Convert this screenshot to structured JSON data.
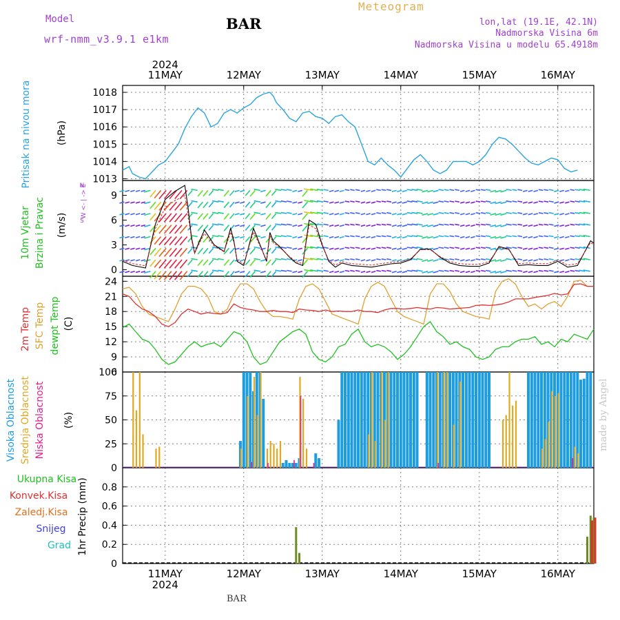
{
  "header": {
    "model_label": "Model",
    "model_name": "wrf-nmm_v3.9.1 e1km",
    "station": "BAR",
    "title": "Meteogram",
    "lonlat": "lon,lat (19.1E, 42.1N)",
    "altitude": "Nadmorska Visina 6m",
    "model_altitude": "Nadmorska Visina u modelu 65.4918m",
    "footer_station": "BAR",
    "watermark": "made by Angel"
  },
  "colors": {
    "pressure": "#29a3e0",
    "wind_label": "#20c020",
    "temp2m": "#e03030",
    "sfc_temp": "#e0a030",
    "dewpt": "#20c020",
    "high_cloud": "#1e9ce0",
    "mid_cloud": "#e0a820",
    "low_cloud": "#e0208c",
    "rain_total": "#20c020",
    "rain_conv": "#e03030",
    "rain_frz": "#e07020",
    "snow": "#4040e0",
    "graupel": "#20c0c0",
    "grid": "#808080"
  },
  "time_axis": {
    "year": "2024",
    "day_labels": [
      "11MAY",
      "12MAY",
      "13MAY",
      "14MAY",
      "15MAY",
      "16MAY"
    ],
    "start_hour": -13,
    "end_hour": 131
  },
  "panels": {
    "pressure": {
      "label": "Pritisak na nivou mora",
      "unit": "(hPa)",
      "ylim": [
        1012.9,
        1018.4
      ],
      "ticks": [
        "1013",
        "1014",
        "1015",
        "1016",
        "1017",
        "1018"
      ]
    },
    "wind": {
      "label1": "10m Vjetar",
      "label2": "Brzina i Pravac",
      "unit": "(m/s)",
      "compass": "W <- | -> E",
      "compass_n": "N",
      "compass_s": "S",
      "ylim": [
        -0.8,
        10.8
      ],
      "ticks": [
        "0",
        "3",
        "6",
        "9"
      ]
    },
    "temperature": {
      "label1": "2m Temp",
      "label2": "SFC Temp",
      "label3": "dewpt Temp",
      "unit": "(C)",
      "ylim": [
        6,
        25
      ],
      "ticks": [
        "6",
        "9",
        "12",
        "15",
        "18",
        "21",
        "24"
      ]
    },
    "cloud": {
      "label1": "Visoka Oblacnost",
      "label2": "Srednja Oblacnost",
      "label3": "Niska Oblacnost",
      "unit": "(%)",
      "ylim": [
        0,
        100
      ],
      "ticks": [
        "0",
        "25",
        "50",
        "75",
        "100"
      ]
    },
    "precip": {
      "legend": [
        "Ukupna Kisa",
        "Konvek.Kisa",
        "Zaledj.Kisa",
        "Snijeg",
        "Grad"
      ],
      "unit": "1hr Precip (mm)",
      "ylim": [
        0,
        1.0
      ],
      "ticks": [
        "0",
        "0.2",
        "0.4",
        "0.6",
        "0.8"
      ]
    }
  },
  "chart_data": [
    {
      "type": "line",
      "title": "Pritisak na nivou mora",
      "ylabel": "(hPa)",
      "x_hours": [
        -13,
        -11,
        -10,
        -8,
        -6,
        -4,
        -2,
        0,
        2,
        4,
        6,
        8,
        10,
        12,
        14,
        16,
        18,
        20,
        22,
        24,
        26,
        28,
        30,
        32,
        33,
        34,
        36,
        38,
        40,
        42,
        44,
        46,
        48,
        50,
        52,
        54,
        56,
        58,
        60,
        62,
        64,
        66,
        68,
        70,
        72,
        74,
        76,
        78,
        80,
        82,
        84,
        86,
        88,
        90,
        92,
        94,
        96,
        98,
        100,
        102,
        104,
        106,
        108,
        110,
        112,
        114,
        116,
        118,
        120,
        122,
        124,
        126,
        128,
        130,
        131
      ],
      "series": [
        {
          "values": [
            1013.5,
            1013.7,
            1013.3,
            1013.1,
            1013.0,
            1013.4,
            1013.8,
            1014.0,
            1014.5,
            1015.0,
            1015.9,
            1016.6,
            1017.1,
            1016.8,
            1016.0,
            1016.2,
            1016.8,
            1017.0,
            1016.8,
            1017.1,
            1017.3,
            1017.7,
            1017.9,
            1018.0,
            1017.8,
            1017.4,
            1017.0,
            1016.5,
            1016.3,
            1016.8,
            1016.9,
            1016.6,
            1016.5,
            1016.2,
            1016.6,
            1016.7,
            1016.3,
            1016.0,
            1015.0,
            1014.0,
            1013.8,
            1014.2,
            1013.8,
            1013.5,
            1013.1,
            1013.6,
            1014.1,
            1014.4,
            1014.0,
            1013.5,
            1013.3,
            1013.5,
            1014.0,
            1014.0,
            1014.0,
            1013.8,
            1014.0,
            1014.4,
            1015.0,
            1015.4,
            1015.3,
            1015.0,
            1014.6,
            1014.2,
            1013.9,
            1013.8,
            1014.0,
            1014.2,
            1014.1,
            1013.6,
            1013.4,
            1013.5
          ]
        }
      ],
      "ylim": [
        1012.9,
        1018.4
      ]
    },
    {
      "type": "line",
      "title": "10m Vjetar Brzina i Pravac",
      "ylabel": "(m/s)",
      "x_hours": [
        -13,
        -10,
        -6,
        -3,
        0,
        3,
        6,
        7,
        8,
        9,
        10,
        12,
        15,
        18,
        20,
        21,
        22,
        24,
        27,
        30,
        31,
        32,
        33,
        35,
        38,
        40,
        42,
        44,
        46,
        48,
        50,
        52,
        54,
        57,
        60,
        63,
        66,
        69,
        72,
        75,
        78,
        81,
        84,
        87,
        90,
        93,
        96,
        99,
        102,
        105,
        108,
        111,
        114,
        117,
        120,
        123,
        126,
        128,
        130,
        131
      ],
      "series": [
        {
          "values": [
            1.0,
            0.5,
            0.2,
            5.5,
            8.5,
            9.5,
            10.2,
            7.5,
            4.0,
            2.0,
            3.0,
            4.8,
            3.0,
            2.2,
            5.0,
            3.5,
            1.0,
            0.5,
            5.0,
            2.0,
            1.0,
            4.5,
            3.5,
            2.8,
            1.5,
            0.8,
            0.5,
            6.0,
            5.5,
            3.0,
            1.0,
            0.3,
            0.8,
            0.5,
            0.4,
            0.3,
            0.5,
            0.7,
            0.8,
            1.2,
            2.5,
            2.5,
            1.5,
            0.8,
            0.5,
            0.4,
            0.4,
            0.8,
            2.8,
            2.5,
            0.5,
            0.6,
            0.5,
            0.5,
            1.0,
            0.3,
            0.5,
            2.0,
            3.5,
            3.2
          ]
        }
      ],
      "ylim": [
        -0.8,
        10.8
      ]
    },
    {
      "type": "line",
      "title": "2m Temp / SFC Temp / dewpt Temp",
      "ylabel": "(C)",
      "x_hours": [
        -13,
        -11,
        -9,
        -7,
        -5,
        -3,
        -1,
        1,
        3,
        5,
        7,
        9,
        11,
        13,
        15,
        17,
        19,
        21,
        23,
        25,
        27,
        29,
        31,
        33,
        35,
        37,
        39,
        41,
        43,
        45,
        47,
        49,
        51,
        53,
        55,
        57,
        59,
        61,
        63,
        65,
        67,
        69,
        71,
        73,
        75,
        77,
        79,
        81,
        83,
        85,
        87,
        89,
        91,
        93,
        95,
        97,
        99,
        101,
        103,
        105,
        107,
        109,
        111,
        113,
        115,
        117,
        119,
        121,
        123,
        125,
        127,
        129,
        131
      ],
      "series": [
        {
          "name": "2m Temp",
          "values": [
            21.5,
            21.0,
            19.5,
            18.5,
            18.0,
            17.0,
            15.5,
            15.0,
            15.8,
            17.5,
            18.5,
            18.0,
            17.5,
            17.8,
            17.6,
            17.5,
            17.8,
            19.5,
            18.8,
            18.5,
            18.3,
            18.0,
            18.0,
            18.2,
            18.0,
            18.0,
            17.8,
            18.5,
            18.3,
            18.2,
            18.0,
            18.3,
            18.0,
            18.1,
            18.0,
            18.0,
            18.3,
            18.0,
            18.0,
            17.8,
            18.3,
            18.6,
            18.6,
            18.5,
            18.6,
            18.8,
            18.6,
            18.5,
            18.8,
            18.7,
            18.5,
            18.6,
            18.7,
            18.8,
            19.2,
            19.3,
            19.2,
            19.3,
            19.5,
            19.9,
            20.5,
            20.5,
            20.5,
            20.8,
            21.0,
            21.2,
            21.6,
            21.3,
            21.5,
            23.4,
            23.5,
            23.0,
            23.0
          ]
        },
        {
          "name": "SFC Temp",
          "values": [
            22.5,
            22.8,
            21.5,
            19.0,
            17.5,
            17.0,
            16.5,
            16.0,
            18.5,
            21.5,
            23.0,
            23.0,
            22.5,
            21.0,
            18.0,
            17.5,
            18.5,
            21.5,
            23.5,
            23.5,
            22.5,
            20.0,
            18.0,
            17.0,
            17.0,
            16.8,
            16.5,
            20.5,
            23.0,
            23.5,
            22.5,
            20.0,
            17.5,
            17.0,
            16.5,
            16.0,
            15.5,
            20.5,
            23.0,
            23.8,
            23.0,
            20.5,
            18.0,
            17.0,
            16.5,
            16.0,
            15.5,
            21.5,
            23.5,
            23.5,
            22.0,
            19.5,
            18.0,
            17.5,
            17.0,
            16.8,
            16.5,
            22.0,
            24.0,
            24.5,
            23.5,
            21.0,
            19.0,
            19.5,
            18.5,
            19.5,
            20.0,
            19.0,
            21.0,
            24.0,
            24.2,
            23.0,
            23.0
          ]
        },
        {
          "name": "dewpt Temp",
          "values": [
            14.8,
            15.5,
            14.0,
            12.5,
            12.0,
            10.5,
            8.5,
            7.5,
            8.0,
            9.5,
            11.0,
            12.0,
            11.0,
            11.5,
            11.8,
            11.0,
            12.5,
            14.0,
            13.5,
            12.0,
            9.0,
            7.5,
            8.0,
            10.0,
            12.0,
            13.0,
            14.0,
            14.5,
            13.5,
            10.0,
            8.5,
            8.0,
            9.0,
            11.0,
            11.5,
            13.5,
            14.5,
            12.0,
            11.0,
            11.5,
            11.0,
            10.0,
            8.5,
            9.5,
            11.0,
            13.0,
            15.0,
            16.0,
            14.0,
            13.0,
            11.5,
            12.0,
            11.0,
            10.5,
            9.0,
            8.5,
            9.0,
            10.5,
            11.0,
            11.0,
            12.0,
            12.5,
            12.5,
            13.0,
            11.5,
            12.0,
            11.0,
            12.5,
            12.0,
            13.5,
            13.0,
            12.5,
            14.5
          ]
        }
      ],
      "ylim": [
        6,
        25
      ]
    },
    {
      "type": "bar",
      "title": "Visoka / Srednja / Niska Oblacnost",
      "ylabel": "(%)",
      "ylim": [
        0,
        100
      ],
      "series": [
        {
          "name": "Visoka Oblacnost",
          "x_hours": [
            23,
            24,
            25,
            26,
            27,
            28,
            29,
            30,
            36,
            37,
            38,
            39,
            40,
            41,
            46,
            47,
            53,
            54,
            55,
            56,
            57,
            58,
            59,
            60,
            61,
            62,
            63,
            64,
            65,
            66,
            67,
            68,
            69,
            70,
            71,
            72,
            73,
            74,
            75,
            76,
            77,
            80,
            81,
            82,
            83,
            84,
            85,
            86,
            87,
            88,
            89,
            90,
            91,
            92,
            93,
            94,
            95,
            96,
            97,
            98,
            99,
            100,
            101,
            102,
            103,
            104,
            105,
            106,
            107,
            108,
            109,
            110,
            111,
            112,
            113,
            114,
            115,
            116,
            117,
            118,
            119,
            120,
            121,
            122,
            123,
            124,
            125,
            126,
            127,
            128,
            129,
            130
          ],
          "values": [
            28,
            100,
            100,
            100,
            80,
            100,
            100,
            72,
            5,
            8,
            5,
            5,
            5,
            10,
            15,
            10,
            50,
            100,
            100,
            100,
            100,
            100,
            100,
            100,
            100,
            100,
            100,
            100,
            100,
            100,
            100,
            100,
            100,
            100,
            100,
            100,
            100,
            100,
            100,
            100,
            100,
            100,
            100,
            100,
            100,
            100,
            100,
            100,
            100,
            100,
            100,
            100,
            100,
            100,
            100,
            100,
            100,
            100,
            100,
            100,
            100,
            0,
            0,
            0,
            0,
            0,
            0,
            0,
            0,
            0,
            0,
            0,
            100,
            100,
            100,
            100,
            100,
            100,
            100,
            100,
            100,
            100,
            100,
            100,
            100,
            100,
            100,
            100,
            92,
            93,
            100,
            100
          ]
        },
        {
          "name": "Srednja Oblacnost",
          "x_hours": [
            -10,
            -9,
            -8,
            -7,
            -3,
            -2,
            23,
            25,
            27,
            28,
            29,
            31,
            32,
            33,
            34,
            35,
            41,
            42,
            43,
            62,
            63,
            64,
            66,
            67,
            68,
            83,
            85,
            86,
            88,
            90,
            103,
            104,
            105,
            106,
            107,
            115,
            116,
            117,
            118,
            119,
            120,
            125,
            126
          ],
          "values": [
            100,
            60,
            100,
            35,
            20,
            22,
            20,
            75,
            95,
            55,
            100,
            20,
            28,
            25,
            20,
            28,
            95,
            72,
            20,
            35,
            100,
            28,
            100,
            50,
            100,
            100,
            100,
            100,
            45,
            90,
            50,
            55,
            100,
            65,
            70,
            20,
            30,
            48,
            80,
            75,
            78,
            22,
            15
          ]
        },
        {
          "name": "Niska Oblacnost",
          "x_hours": [
            26,
            31,
            39,
            41,
            45,
            83,
            124
          ],
          "values": [
            6,
            5,
            8,
            75,
            5,
            5,
            10
          ]
        }
      ]
    },
    {
      "type": "bar",
      "title": "1hr Precip",
      "ylabel": "1hr Precip (mm)",
      "ylim": [
        0,
        1.0
      ],
      "series": [
        {
          "name": "Ukupna Kisa",
          "x_hours": [
            40,
            41,
            129,
            130,
            131
          ],
          "values": [
            0.38,
            0.11,
            0.28,
            0.5,
            0.48
          ]
        },
        {
          "name": "Konvek.Kisa",
          "x_hours": [
            130,
            131
          ],
          "values": [
            0.45,
            0.48
          ]
        }
      ]
    }
  ]
}
